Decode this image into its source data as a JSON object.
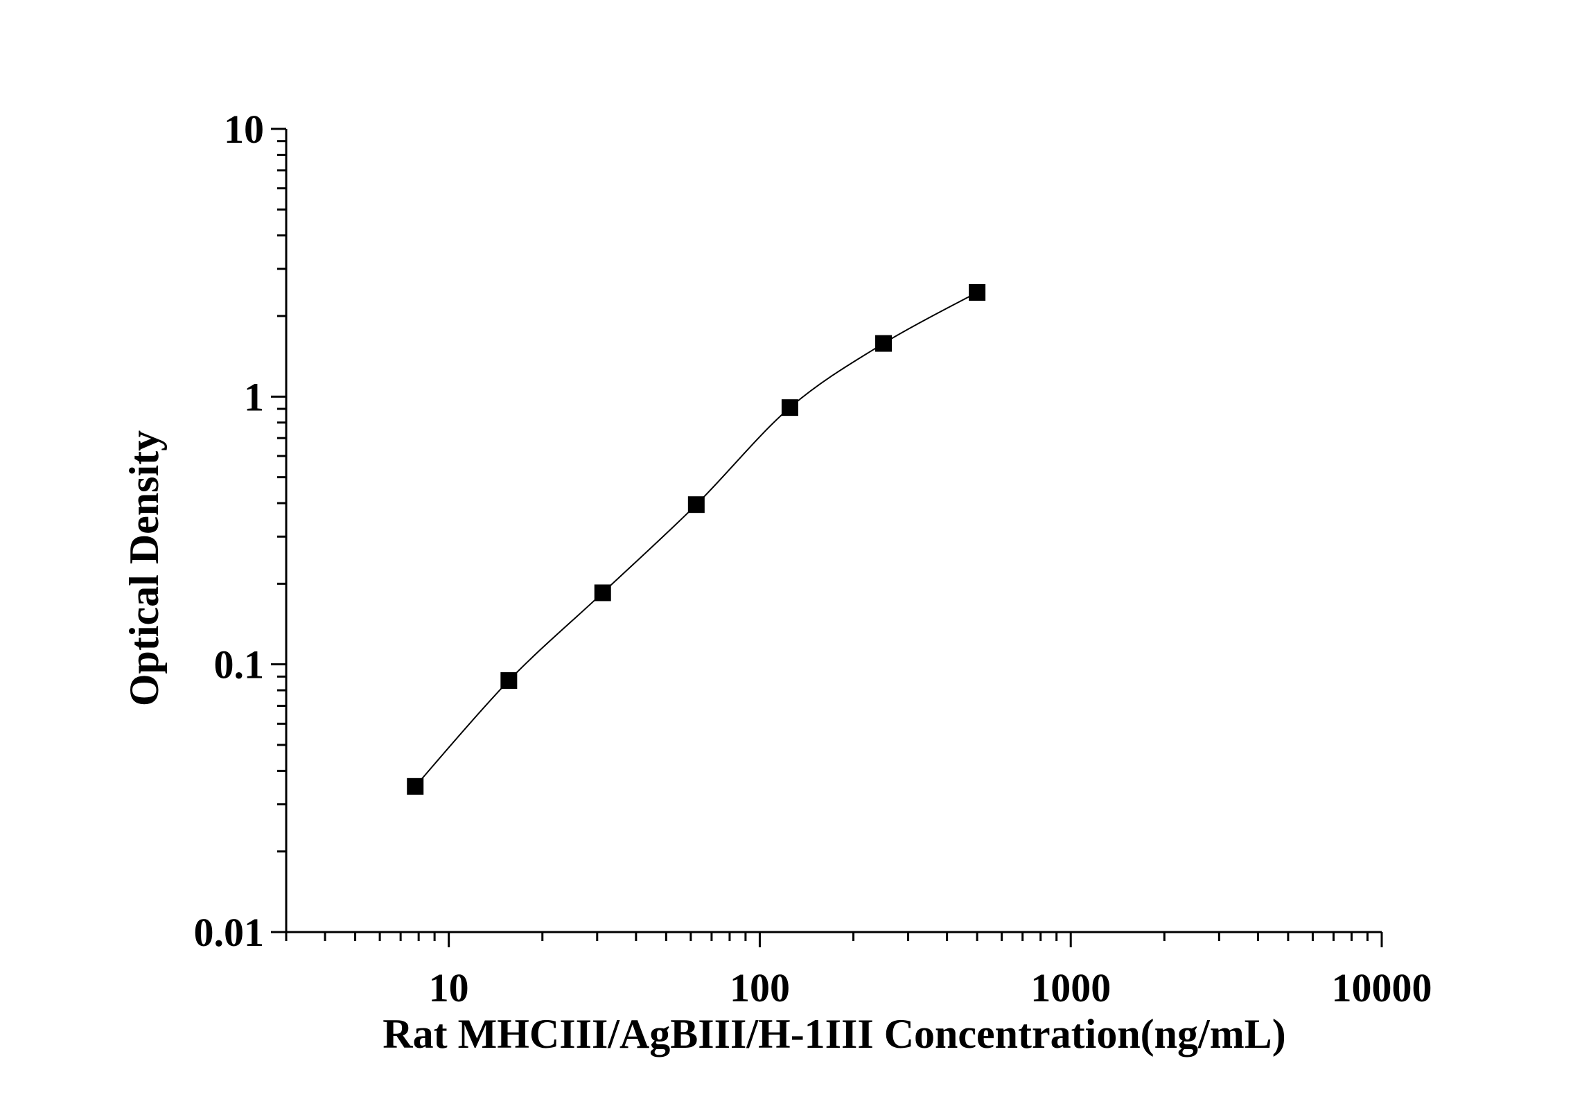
{
  "chart_data": {
    "type": "scatter",
    "title": "",
    "xlabel": "Rat MHCIII/AgBIII/H-1III Concentration(ng/mL)",
    "ylabel": "Optical Density",
    "x_scale": "log",
    "y_scale": "log",
    "xlim": [
      3,
      10000
    ],
    "ylim": [
      0.01,
      10
    ],
    "x_ticks": [
      {
        "value": 10,
        "label": "10"
      },
      {
        "value": 100,
        "label": "100"
      },
      {
        "value": 1000,
        "label": "1000"
      },
      {
        "value": 10000,
        "label": "10000"
      }
    ],
    "y_ticks": [
      {
        "value": 0.01,
        "label": "0.01"
      },
      {
        "value": 0.1,
        "label": "0.1"
      },
      {
        "value": 1,
        "label": "1"
      },
      {
        "value": 10,
        "label": "10"
      }
    ],
    "grid": false,
    "legend": "none",
    "series": [
      {
        "x": [
          7.8,
          15.6,
          31.25,
          62.5,
          125,
          250,
          500
        ],
        "y": [
          0.035,
          0.087,
          0.185,
          0.395,
          0.91,
          1.58,
          2.45
        ],
        "marker": "square",
        "connect": "smooth-line"
      }
    ],
    "colors": {
      "axis": "#000000",
      "marker": "#000000",
      "line": "#000000"
    }
  }
}
